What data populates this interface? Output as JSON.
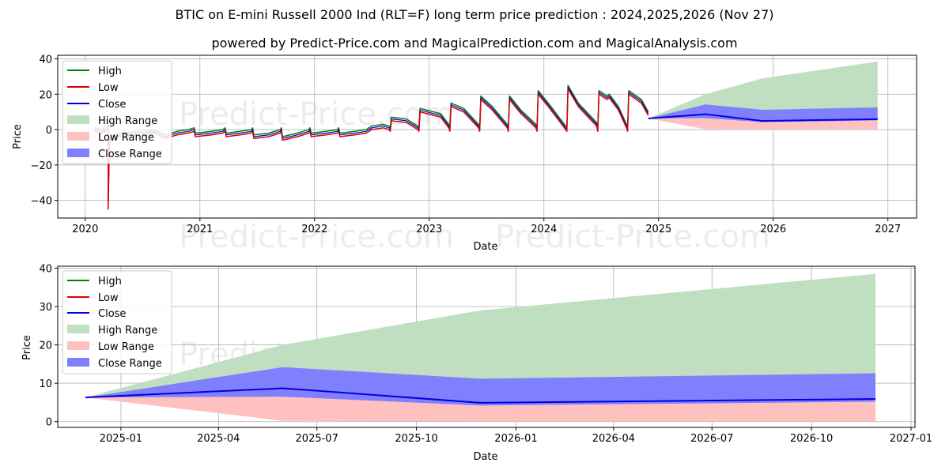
{
  "title": "BTIC on E-mini Russell 2000 Ind (RLT=F) long term price prediction : 2024,2025,2026 (Nov 27)",
  "subtitle": "powered by Predict-Price.com and MagicalPrediction.com and MagicalAnalysis.com",
  "watermark": "Predict-Price.com",
  "legend": {
    "high": "High",
    "low": "Low",
    "close": "Close",
    "high_range": "High Range",
    "low_range": "Low Range",
    "close_range": "Close Range"
  },
  "colors": {
    "high": "#008000",
    "low": "#dd0000",
    "close": "#0000dd",
    "high_range": "#c0dfc0",
    "low_range": "#ffc0c0",
    "close_range": "#8080ff",
    "grid": "#b0b0b0"
  },
  "chart_data": [
    {
      "type": "line",
      "panel": "top",
      "xlabel": "Date",
      "ylabel": "Price",
      "xlim": [
        2019.76,
        2027.25
      ],
      "ylim": [
        -50,
        42
      ],
      "x_ticks": [
        2020,
        2021,
        2022,
        2023,
        2024,
        2025,
        2026,
        2027
      ],
      "x_tick_labels": [
        "2020",
        "2021",
        "2022",
        "2023",
        "2024",
        "2025",
        "2026",
        "2027"
      ],
      "y_ticks": [
        -40,
        -20,
        0,
        20,
        40
      ],
      "y_tick_labels": [
        "−40",
        "−20",
        "0",
        "20",
        "40"
      ],
      "grid": true,
      "legend_position": "upper-left",
      "history": {
        "x": [
          2020.08,
          2020.15,
          2020.2,
          2020.2,
          2020.21,
          2020.22,
          2020.3,
          2020.45,
          2020.6,
          2020.7,
          2020.75,
          2020.8,
          2020.9,
          2020.95,
          2020.96,
          2021.1,
          2021.2,
          2021.22,
          2021.23,
          2021.35,
          2021.45,
          2021.46,
          2021.47,
          2021.6,
          2021.7,
          2021.71,
          2021.72,
          2021.85,
          2021.95,
          2021.96,
          2021.97,
          2022.1,
          2022.2,
          2022.21,
          2022.22,
          2022.35,
          2022.45,
          2022.5,
          2022.6,
          2022.65,
          2022.66,
          2022.67,
          2022.8,
          2022.9,
          2022.91,
          2022.92,
          2023.1,
          2023.17,
          2023.18,
          2023.19,
          2023.3,
          2023.43,
          2023.44,
          2023.45,
          2023.55,
          2023.68,
          2023.69,
          2023.7,
          2023.8,
          2023.93,
          2023.94,
          2023.95,
          2024.05,
          2024.19,
          2024.2,
          2024.21,
          2024.3,
          2024.46,
          2024.47,
          2024.48,
          2024.55,
          2024.57,
          2024.65,
          2024.72,
          2024.73,
          2024.74,
          2024.85,
          2024.91
        ],
        "close": [
          0,
          -1,
          2,
          -44,
          -8,
          -5,
          -3,
          -2,
          -1,
          -4,
          -3,
          -2,
          -1,
          0,
          -3,
          -2,
          -1,
          0,
          -3,
          -2,
          -1,
          0,
          -4,
          -3,
          -1,
          0,
          -5,
          -3,
          -1,
          0,
          -3,
          -2,
          -1,
          0,
          -3,
          -2,
          -1,
          1,
          2,
          1,
          0,
          6,
          5,
          1,
          0,
          11,
          8,
          2,
          0,
          14,
          11,
          2,
          0,
          18,
          12,
          2,
          0,
          18,
          10,
          2,
          0,
          21,
          13,
          1,
          0,
          24,
          14,
          3,
          0,
          21,
          18,
          19,
          12,
          2,
          0,
          21,
          16,
          9
        ],
        "high": [
          1,
          0,
          5,
          -40,
          -7,
          -4,
          -2,
          -1,
          0,
          -3,
          -2,
          -1,
          0,
          1,
          -2,
          -1,
          0,
          1,
          -2,
          -1,
          0,
          1,
          -3,
          -2,
          0,
          1,
          -4,
          -2,
          0,
          1,
          -2,
          -1,
          0,
          1,
          -2,
          -1,
          0,
          2,
          3,
          2,
          1,
          7,
          6,
          2,
          1,
          12,
          9,
          3,
          1,
          15,
          12,
          3,
          1,
          19,
          13,
          3,
          1,
          19,
          11,
          3,
          1,
          22,
          14,
          2,
          1,
          25,
          15,
          4,
          1,
          22,
          19,
          20,
          13,
          3,
          1,
          22,
          17,
          10
        ],
        "low": [
          -1,
          -2,
          0,
          -45,
          -9,
          -6,
          -4,
          -3,
          -2,
          -5,
          -4,
          -3,
          -2,
          -1,
          -4,
          -3,
          -2,
          -1,
          -4,
          -3,
          -2,
          -1,
          -5,
          -4,
          -2,
          -1,
          -6,
          -4,
          -2,
          -1,
          -4,
          -3,
          -2,
          -1,
          -4,
          -3,
          -2,
          0,
          1,
          0,
          -1,
          5,
          4,
          0,
          -1,
          10,
          7,
          1,
          -1,
          13,
          10,
          1,
          -1,
          17,
          11,
          1,
          -1,
          17,
          9,
          1,
          -1,
          20,
          12,
          0,
          -1,
          23,
          13,
          2,
          -1,
          20,
          17,
          18,
          11,
          1,
          -1,
          20,
          15,
          8
        ]
      },
      "forecast": {
        "x": [
          2024.91,
          2025.41,
          2025.91,
          2026.91
        ],
        "close": [
          6.3,
          8.7,
          4.9,
          5.9
        ],
        "high_range_upper": [
          6.3,
          20,
          29,
          38.5
        ],
        "close_range_upper": [
          6.3,
          14.2,
          11.2,
          12.6
        ],
        "close_range_lower": [
          6.3,
          6.5,
          4.2,
          5.2
        ],
        "low_range_lower": [
          6.3,
          0.2,
          0,
          0
        ]
      }
    },
    {
      "type": "line",
      "panel": "bottom",
      "xlabel": "Date",
      "ylabel": "Price",
      "xlim": [
        2024.84,
        2027.01
      ],
      "ylim": [
        -1.5,
        40.5
      ],
      "x_ticks": [
        2025.0,
        2025.247,
        2025.496,
        2025.748,
        2026.0,
        2026.247,
        2026.496,
        2026.748,
        2027.0
      ],
      "x_tick_labels": [
        "2025-01",
        "2025-04",
        "2025-07",
        "2025-10",
        "2026-01",
        "2026-04",
        "2026-07",
        "2026-10",
        "2027-01"
      ],
      "y_ticks": [
        0,
        10,
        20,
        30,
        40
      ],
      "y_tick_labels": [
        "0",
        "10",
        "20",
        "30",
        "40"
      ],
      "grid": true,
      "legend_position": "upper-left",
      "forecast": {
        "x": [
          2024.91,
          2025.41,
          2025.91,
          2026.91
        ],
        "close": [
          6.3,
          8.7,
          4.9,
          5.9
        ],
        "high_range_upper": [
          6.3,
          20,
          29,
          38.5
        ],
        "close_range_upper": [
          6.3,
          14.2,
          11.2,
          12.6
        ],
        "close_range_lower": [
          6.3,
          6.5,
          4.2,
          5.2
        ],
        "low_range_lower": [
          6.3,
          0.2,
          0,
          0
        ]
      }
    }
  ]
}
